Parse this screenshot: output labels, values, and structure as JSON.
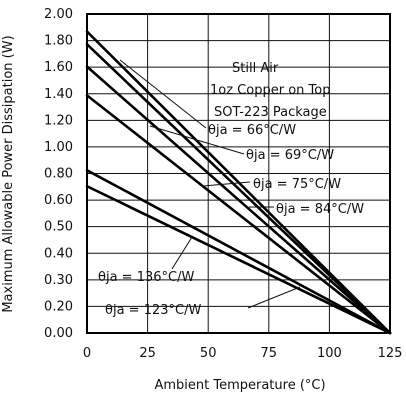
{
  "chart_data": {
    "type": "line",
    "xlabel": "Ambient Temperature (°C)",
    "ylabel": "Maximum Allowable Power Dissipation (W)",
    "xlim": [
      0,
      125
    ],
    "ylim": [
      0,
      2.0
    ],
    "x_ticks": [
      "0",
      "25",
      "50",
      "75",
      "100",
      "125"
    ],
    "y_ticks": [
      "0.00",
      "0.20",
      "0.30",
      "0.40",
      "0.50",
      "0.60",
      "0.80",
      "1.00",
      "1.20",
      "1.40",
      "1.60",
      "1.80",
      "2.00"
    ],
    "grid": true,
    "series": [
      {
        "name": "θja = 66°C/W",
        "x": [
          0,
          125
        ],
        "y": [
          1.89,
          0.0
        ]
      },
      {
        "name": "θja = 69°C/W",
        "x": [
          0,
          125
        ],
        "y": [
          1.81,
          0.0
        ]
      },
      {
        "name": "θja = 75°C/W",
        "x": [
          0,
          125
        ],
        "y": [
          1.67,
          0.0
        ]
      },
      {
        "name": "θja = 84°C/W",
        "x": [
          0,
          125
        ],
        "y": [
          1.49,
          0.0
        ]
      },
      {
        "name": "θja = 123°C/W",
        "x": [
          0,
          125
        ],
        "y": [
          1.02,
          0.0
        ]
      },
      {
        "name": "θja = 136°C/W",
        "x": [
          0,
          125
        ],
        "y": [
          0.92,
          0.0
        ]
      }
    ],
    "notes": [
      "Still Air",
      "1oz Copper on Top",
      "SOT-223 Package"
    ],
    "labels": {
      "l66": "θja = 66°C/W",
      "l69": "θja = 69°C/W",
      "l75": "θja = 75°C/W",
      "l84": "θja = 84°C/W",
      "l136": "θja = 136°C/W",
      "l123": "θja = 123°C/W"
    }
  }
}
